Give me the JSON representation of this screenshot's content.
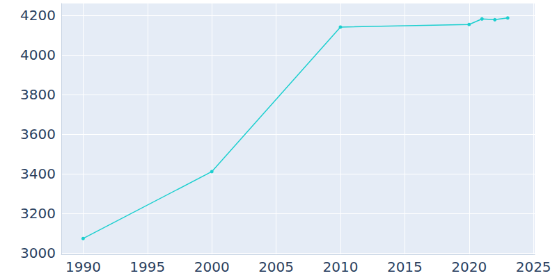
{
  "chart_data": {
    "type": "line",
    "x": [
      1990,
      2000,
      2010,
      2020,
      2021,
      2022,
      2023
    ],
    "values": [
      3073,
      3411,
      4141,
      4154,
      4182,
      4178,
      4187
    ],
    "color": "#1ccfcf",
    "marker": "circle",
    "xlim": [
      1988.3,
      2025.1
    ],
    "xticks": [
      1990,
      1995,
      2000,
      2005,
      2010,
      2015,
      2020,
      2025
    ],
    "ylim": [
      2993,
      4260
    ],
    "yticks": [
      3000,
      3200,
      3400,
      3600,
      3800,
      4000,
      4200
    ],
    "grid": true
  }
}
